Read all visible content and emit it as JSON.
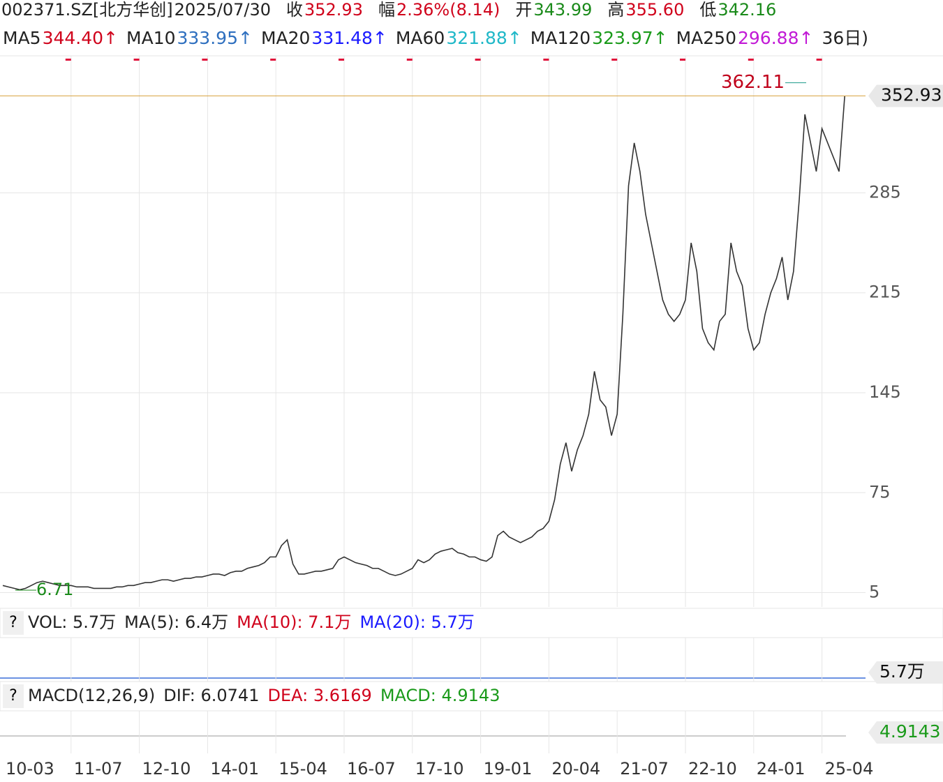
{
  "chart_data": {
    "type": "line",
    "quote": [
      {
        "text": "002371.SZ[北方华创]",
        "color": "#222222"
      },
      {
        "text": "2025/07/30",
        "color": "#222222"
      },
      {
        "text": "收",
        "color": "#222222"
      },
      {
        "text": "352.93",
        "color": "#d0021b"
      },
      {
        "text": "幅",
        "color": "#222222"
      },
      {
        "text": "2.36%(8.14)",
        "color": "#d0021b"
      },
      {
        "text": "开",
        "color": "#222222"
      },
      {
        "text": "343.99",
        "color": "#1a8a1a"
      },
      {
        "text": "高",
        "color": "#222222"
      },
      {
        "text": "355.60",
        "color": "#d0021b"
      },
      {
        "text": "低",
        "color": "#222222"
      },
      {
        "text": "342.16",
        "color": "#1a8a1a"
      }
    ],
    "ma_legend": [
      {
        "text": "MA5",
        "color": "#222222"
      },
      {
        "text": "344.40↑",
        "color": "#d0021b"
      },
      {
        "text": "MA10",
        "color": "#222222"
      },
      {
        "text": "333.95↑",
        "color": "#2e6fbf"
      },
      {
        "text": "MA20",
        "color": "#222222"
      },
      {
        "text": "331.48↑",
        "color": "#1a1aff"
      },
      {
        "text": "MA60",
        "color": "#222222"
      },
      {
        "text": "321.88↑",
        "color": "#1fb8c8"
      },
      {
        "text": "MA120",
        "color": "#222222"
      },
      {
        "text": "323.97↑",
        "color": "#1a9a1a"
      },
      {
        "text": "MA250",
        "color": "#222222"
      },
      {
        "text": "296.88↑",
        "color": "#c21ad6"
      },
      {
        "text": "36日)",
        "color": "#222222"
      }
    ],
    "vol_legend": [
      {
        "text": "VOL: 5.7万",
        "color": "#222222"
      },
      {
        "text": "MA(5): 6.4万",
        "color": "#222222"
      },
      {
        "text": "MA(10): 7.1万",
        "color": "#d0021b"
      },
      {
        "text": "MA(20): 5.7万",
        "color": "#1a1aff"
      }
    ],
    "macd_legend": [
      {
        "text": "MACD(12,26,9)",
        "color": "#222222"
      },
      {
        "text": "DIF: 6.0741",
        "color": "#222222"
      },
      {
        "text": "DEA: 3.6169",
        "color": "#d0021b"
      },
      {
        "text": "MACD: 4.9143",
        "color": "#1a9a1a"
      }
    ],
    "vol_tag": "5.7万",
    "macd_tag": "4.9143",
    "last_price": 352.93,
    "max_label": {
      "value": 362.11,
      "label": "362.11"
    },
    "min_label": {
      "value": 6.71,
      "label": "6.71"
    },
    "ylim": [
      -5,
      381
    ],
    "yticks": [
      5,
      75,
      145,
      215,
      285
    ],
    "categories": [
      "10-03",
      null,
      null,
      null,
      null,
      null,
      null,
      null,
      null,
      null,
      null,
      null,
      "11-07",
      null,
      null,
      null,
      null,
      null,
      null,
      null,
      null,
      null,
      null,
      null,
      "12-10",
      null,
      null,
      null,
      null,
      null,
      null,
      null,
      null,
      null,
      null,
      null,
      "14-01",
      null,
      null,
      null,
      null,
      null,
      null,
      null,
      null,
      null,
      null,
      null,
      "15-04",
      null,
      null,
      null,
      null,
      null,
      null,
      null,
      null,
      null,
      null,
      null,
      "16-07",
      null,
      null,
      null,
      null,
      null,
      null,
      null,
      null,
      null,
      null,
      null,
      "17-10",
      null,
      null,
      null,
      null,
      null,
      null,
      null,
      null,
      null,
      null,
      null,
      "19-01",
      null,
      null,
      null,
      null,
      null,
      null,
      null,
      null,
      null,
      null,
      null,
      "20-04",
      null,
      null,
      null,
      null,
      null,
      null,
      null,
      null,
      null,
      null,
      null,
      "21-07",
      null,
      null,
      null,
      null,
      null,
      null,
      null,
      null,
      null,
      null,
      null,
      "22-10",
      null,
      null,
      null,
      null,
      null,
      null,
      null,
      null,
      null,
      null,
      null,
      "24-01",
      null,
      null,
      null,
      null,
      null,
      null,
      null,
      null,
      null,
      null,
      null,
      "25-04",
      null,
      null,
      null,
      null
    ],
    "series": [
      {
        "name": "收",
        "color": "#333333",
        "values": [
          10,
          9,
          8,
          7,
          8,
          10,
          12,
          13,
          12,
          11,
          10,
          10,
          10,
          9,
          9,
          9,
          8,
          8,
          8,
          8,
          9,
          9,
          10,
          10,
          11,
          12,
          12,
          13,
          14,
          14,
          13,
          14,
          15,
          15,
          16,
          16,
          17,
          18,
          18,
          17,
          19,
          20,
          20,
          22,
          23,
          24,
          26,
          30,
          30,
          38,
          42,
          25,
          18,
          18,
          19,
          20,
          20,
          21,
          22,
          28,
          30,
          28,
          26,
          25,
          24,
          22,
          22,
          20,
          18,
          17,
          18,
          20,
          22,
          28,
          26,
          28,
          32,
          34,
          35,
          36,
          33,
          32,
          30,
          30,
          28,
          27,
          30,
          45,
          48,
          44,
          42,
          40,
          42,
          44,
          48,
          50,
          55,
          70,
          95,
          110,
          90,
          105,
          115,
          130,
          160,
          140,
          135,
          115,
          130,
          200,
          290,
          320,
          300,
          270,
          250,
          230,
          210,
          200,
          195,
          200,
          210,
          250,
          230,
          190,
          180,
          175,
          195,
          200,
          250,
          230,
          220,
          190,
          175,
          180,
          200,
          215,
          225,
          240,
          210,
          230,
          280,
          340,
          320,
          300,
          330,
          320,
          310,
          300,
          352.93
        ]
      }
    ]
  }
}
